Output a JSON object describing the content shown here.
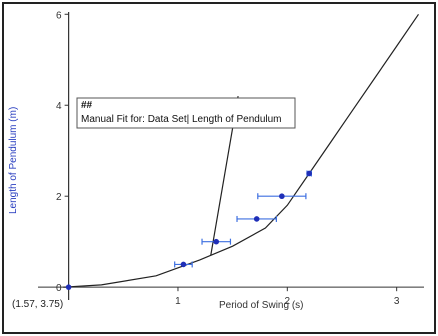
{
  "chart_data": {
    "type": "scatter",
    "xlabel": "Period of Swing (s)",
    "ylabel": "Length of Pendulum (m)",
    "xlim": [
      -0.28,
      3.25
    ],
    "ylim": [
      -0.15,
      6.05
    ],
    "x_ticks": [
      1,
      2,
      3
    ],
    "y_ticks": [
      0,
      2,
      4,
      6
    ],
    "grid": false,
    "points": [
      {
        "x": 0.0,
        "y": 0.0,
        "xerr": 0.0
      },
      {
        "x": 1.05,
        "y": 0.5,
        "xerr": 0.08
      },
      {
        "x": 1.35,
        "y": 1.0,
        "xerr": 0.13
      },
      {
        "x": 1.72,
        "y": 1.5,
        "xerr": 0.18
      },
      {
        "x": 1.95,
        "y": 2.0,
        "xerr": 0.22
      },
      {
        "x": 2.2,
        "y": 2.5,
        "xerr": 0.02
      }
    ],
    "fit_curve": [
      [
        -0.05,
        0.0
      ],
      [
        0.3,
        0.05
      ],
      [
        0.8,
        0.25
      ],
      [
        1.2,
        0.6
      ],
      [
        1.5,
        0.9
      ],
      [
        1.8,
        1.3
      ],
      [
        2.0,
        1.8
      ],
      [
        2.2,
        2.5
      ],
      [
        2.4,
        3.2
      ],
      [
        2.6,
        3.9
      ],
      [
        2.8,
        4.6
      ],
      [
        3.0,
        5.3
      ],
      [
        3.2,
        6.0
      ]
    ],
    "steep_line": [
      [
        1.3,
        0.7
      ],
      [
        1.55,
        4.2
      ]
    ],
    "annotation": {
      "title": "##",
      "text": "Manual Fit for: Data Set| Length of Pendulum"
    },
    "cursor_readout": "(1.57, 3.75)",
    "colors": {
      "points": "#1f2fb8",
      "errorbars": "#3d6fe0",
      "curve": "#222222",
      "axis": "#333333",
      "ylabel": "#2a3fc0"
    }
  }
}
